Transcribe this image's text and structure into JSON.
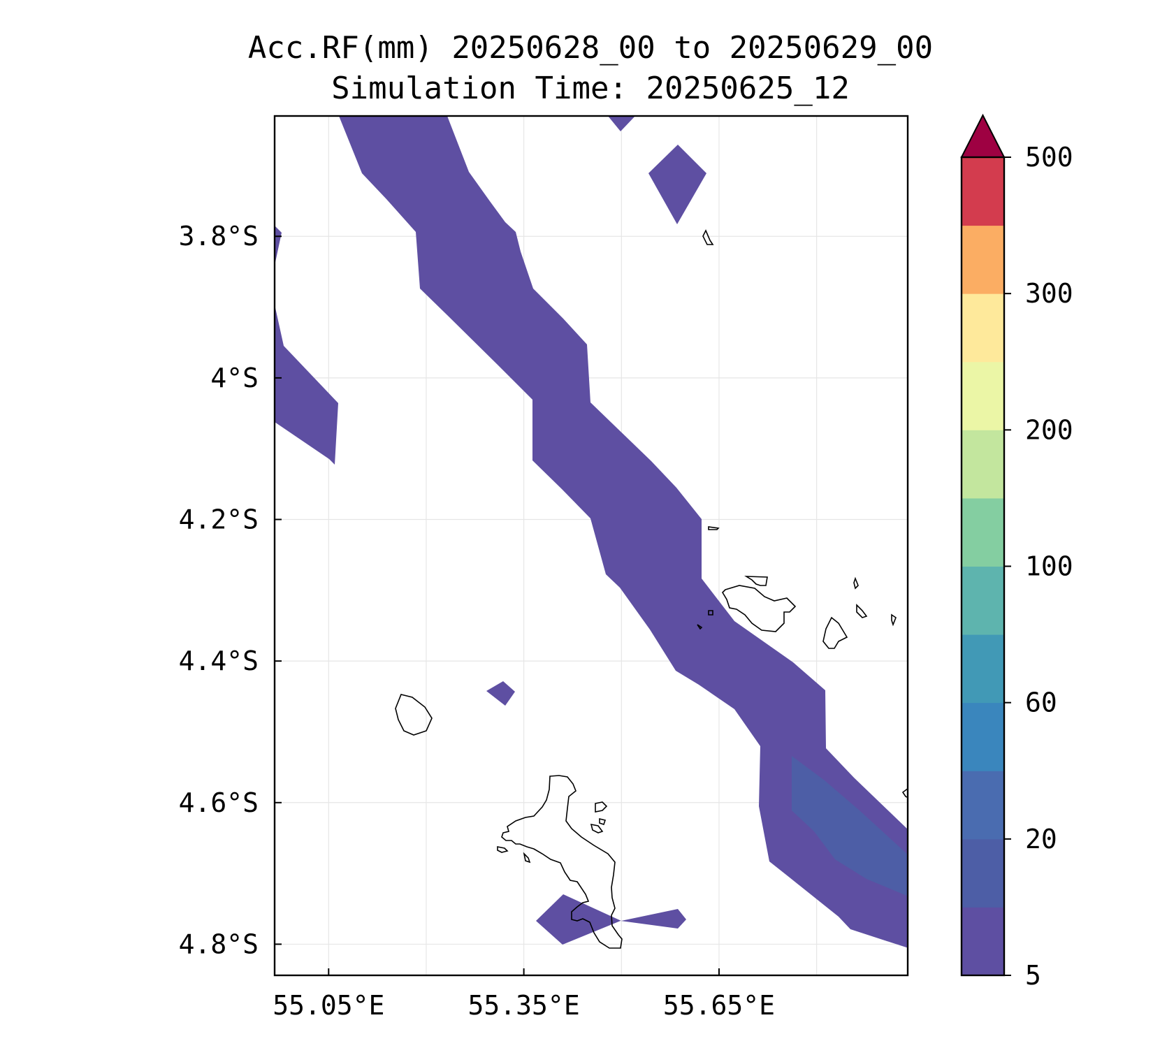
{
  "title": {
    "line1": "Acc.RF(mm) 20250628_00 to 20250629_00",
    "line2": "Simulation Time: 20250625_12"
  },
  "map": {
    "extent": {
      "lon_min": 54.967,
      "lon_max": 55.94,
      "lat_max": -3.63,
      "lat_min": -4.844
    },
    "lat_ticks": [
      {
        "value": -3.8,
        "label": "3.8°S"
      },
      {
        "value": -4.0,
        "label": "4°S"
      },
      {
        "value": -4.2,
        "label": "4.2°S"
      },
      {
        "value": -4.4,
        "label": "4.4°S"
      },
      {
        "value": -4.6,
        "label": "4.6°S"
      },
      {
        "value": -4.8,
        "label": "4.8°S"
      }
    ],
    "lon_ticks": [
      {
        "value": 55.05,
        "label": "55.05°E"
      },
      {
        "value": 55.35,
        "label": "55.35°E"
      },
      {
        "value": 55.65,
        "label": "55.65°E"
      }
    ],
    "lon_gridlines": [
      55.2,
      55.5,
      55.8
    ],
    "grid": true
  },
  "colorbar": {
    "labels": [
      {
        "value": 5,
        "label": "5"
      },
      {
        "value": 20,
        "label": "20"
      },
      {
        "value": 60,
        "label": "60"
      },
      {
        "value": 100,
        "label": "100"
      },
      {
        "value": 200,
        "label": "200"
      },
      {
        "value": 300,
        "label": "300"
      },
      {
        "value": 500,
        "label": "500"
      }
    ],
    "colors": [
      "#5e4fa2",
      "#4d5ea6",
      "#4a6cb0",
      "#3a86bd",
      "#4199b6",
      "#5eb4ae",
      "#84cea1",
      "#c3e69e",
      "#ebf6a6",
      "#fee99b",
      "#fbad63",
      "#d33c4e"
    ],
    "extend_color": "#9e0142"
  }
}
